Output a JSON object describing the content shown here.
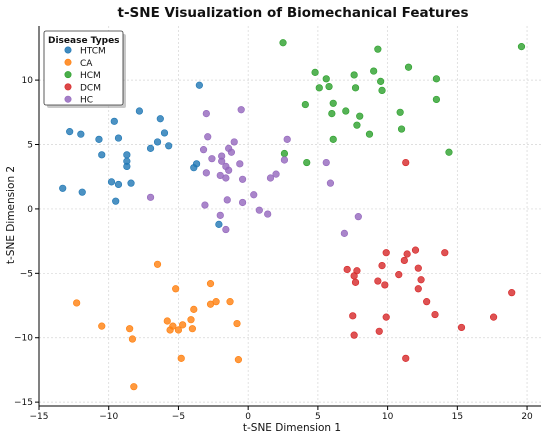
{
  "chart_data": {
    "type": "scatter",
    "title": "t-SNE Visualization of Biomechanical Features",
    "xlabel": "t-SNE Dimension 1",
    "ylabel": "t-SNE Dimension 2",
    "xlim": [
      -15,
      21
    ],
    "ylim": [
      -15.3,
      14.2
    ],
    "xticks": [
      -15,
      -10,
      -5,
      0,
      5,
      10,
      15,
      20
    ],
    "yticks": [
      -15,
      -10,
      -5,
      0,
      5,
      10
    ],
    "xtick_labels": [
      "−15",
      "−10",
      "−5",
      "0",
      "5",
      "10",
      "15",
      "20"
    ],
    "ytick_labels": [
      "−15",
      "−10",
      "−5",
      "0",
      "5",
      "10"
    ],
    "grid": true,
    "legend": {
      "title": "Disease Types",
      "position": "top-left"
    },
    "series": [
      {
        "name": "HTCM",
        "color": "#1f77b4",
        "points": [
          [
            -3.5,
            9.6
          ],
          [
            -7.8,
            7.6
          ],
          [
            -9.6,
            6.8
          ],
          [
            -6.3,
            7.0
          ],
          [
            -12.8,
            6.0
          ],
          [
            -12.0,
            5.8
          ],
          [
            -6.0,
            5.9
          ],
          [
            -9.3,
            5.5
          ],
          [
            -10.7,
            5.4
          ],
          [
            -6.5,
            5.2
          ],
          [
            -7.0,
            4.7
          ],
          [
            -5.7,
            4.9
          ],
          [
            -8.7,
            4.2
          ],
          [
            -10.5,
            4.2
          ],
          [
            -3.7,
            3.5
          ],
          [
            -8.7,
            3.7
          ],
          [
            -3.9,
            3.2
          ],
          [
            -8.7,
            3.3
          ],
          [
            -9.8,
            2.1
          ],
          [
            -9.3,
            1.9
          ],
          [
            -8.4,
            2.0
          ],
          [
            -13.3,
            1.6
          ],
          [
            -11.9,
            1.3
          ],
          [
            -9.5,
            0.6
          ],
          [
            -2.1,
            -1.2
          ]
        ]
      },
      {
        "name": "CA",
        "color": "#ff7f0e",
        "points": [
          [
            -6.5,
            -4.3
          ],
          [
            -12.3,
            -7.3
          ],
          [
            -5.2,
            -6.2
          ],
          [
            -2.7,
            -5.8
          ],
          [
            -2.3,
            -7.2
          ],
          [
            -1.3,
            -7.2
          ],
          [
            -2.7,
            -7.4
          ],
          [
            -3.9,
            -7.8
          ],
          [
            -10.5,
            -9.1
          ],
          [
            -5.8,
            -8.7
          ],
          [
            -5.4,
            -9.1
          ],
          [
            -5.6,
            -9.4
          ],
          [
            -5.0,
            -9.4
          ],
          [
            -4.7,
            -9.0
          ],
          [
            -4.0,
            -9.3
          ],
          [
            -4.1,
            -8.6
          ],
          [
            -0.8,
            -8.9
          ],
          [
            -8.5,
            -9.3
          ],
          [
            -8.3,
            -10.1
          ],
          [
            -4.8,
            -11.6
          ],
          [
            -0.7,
            -11.7
          ],
          [
            -8.2,
            -13.8
          ]
        ]
      },
      {
        "name": "HCM",
        "color": "#2ca02c",
        "points": [
          [
            2.5,
            12.9
          ],
          [
            19.6,
            12.6
          ],
          [
            9.3,
            12.4
          ],
          [
            11.5,
            11.0
          ],
          [
            4.8,
            10.6
          ],
          [
            9.0,
            10.7
          ],
          [
            7.6,
            10.4
          ],
          [
            13.5,
            10.1
          ],
          [
            5.6,
            10.1
          ],
          [
            9.5,
            9.9
          ],
          [
            5.1,
            9.4
          ],
          [
            5.8,
            9.5
          ],
          [
            7.7,
            9.4
          ],
          [
            9.6,
            9.2
          ],
          [
            13.5,
            8.5
          ],
          [
            4.1,
            8.1
          ],
          [
            6.1,
            8.2
          ],
          [
            7.0,
            7.6
          ],
          [
            10.9,
            7.5
          ],
          [
            6.0,
            7.4
          ],
          [
            8.0,
            7.2
          ],
          [
            7.8,
            6.5
          ],
          [
            11.0,
            6.2
          ],
          [
            8.7,
            5.8
          ],
          [
            6.1,
            5.4
          ],
          [
            14.4,
            4.4
          ],
          [
            2.6,
            4.3
          ],
          [
            4.2,
            3.6
          ]
        ]
      },
      {
        "name": "DCM",
        "color": "#d62728",
        "points": [
          [
            11.3,
            3.6
          ],
          [
            9.9,
            -3.4
          ],
          [
            11.4,
            -3.5
          ],
          [
            12.0,
            -3.2
          ],
          [
            14.1,
            -3.4
          ],
          [
            11.2,
            -4.0
          ],
          [
            9.6,
            -4.4
          ],
          [
            12.2,
            -4.6
          ],
          [
            7.1,
            -4.7
          ],
          [
            7.8,
            -4.8
          ],
          [
            7.6,
            -5.2
          ],
          [
            10.8,
            -5.1
          ],
          [
            12.4,
            -5.5
          ],
          [
            7.7,
            -5.7
          ],
          [
            9.3,
            -5.6
          ],
          [
            9.8,
            -5.9
          ],
          [
            12.2,
            -6.2
          ],
          [
            18.9,
            -6.5
          ],
          [
            12.8,
            -7.2
          ],
          [
            13.4,
            -8.2
          ],
          [
            7.5,
            -8.3
          ],
          [
            9.9,
            -8.4
          ],
          [
            17.6,
            -8.4
          ],
          [
            15.3,
            -9.2
          ],
          [
            9.4,
            -9.5
          ],
          [
            7.6,
            -9.8
          ],
          [
            11.3,
            -11.6
          ]
        ]
      },
      {
        "name": "HC",
        "color": "#9467bd",
        "points": [
          [
            -0.5,
            7.7
          ],
          [
            -3.0,
            7.4
          ],
          [
            -2.9,
            5.6
          ],
          [
            -1.0,
            5.2
          ],
          [
            2.8,
            5.4
          ],
          [
            -1.4,
            4.7
          ],
          [
            -3.2,
            4.6
          ],
          [
            -2.6,
            3.9
          ],
          [
            -1.2,
            4.4
          ],
          [
            -1.9,
            4.1
          ],
          [
            -1.9,
            3.7
          ],
          [
            2.6,
            3.8
          ],
          [
            -0.6,
            3.5
          ],
          [
            -1.6,
            3.3
          ],
          [
            -1.4,
            3.0
          ],
          [
            -3.0,
            2.8
          ],
          [
            -2.0,
            2.6
          ],
          [
            -1.6,
            2.4
          ],
          [
            2.0,
            2.7
          ],
          [
            -0.4,
            2.3
          ],
          [
            1.6,
            2.4
          ],
          [
            5.9,
            2.0
          ],
          [
            5.6,
            3.6
          ],
          [
            0.4,
            1.1
          ],
          [
            -7.0,
            0.9
          ],
          [
            -1.5,
            0.7
          ],
          [
            -3.1,
            0.3
          ],
          [
            -0.4,
            0.5
          ],
          [
            0.8,
            -0.1
          ],
          [
            1.4,
            -0.4
          ],
          [
            -2.0,
            -0.5
          ],
          [
            -1.6,
            -1.6
          ],
          [
            7.9,
            -0.6
          ],
          [
            6.9,
            -1.9
          ]
        ]
      }
    ]
  }
}
